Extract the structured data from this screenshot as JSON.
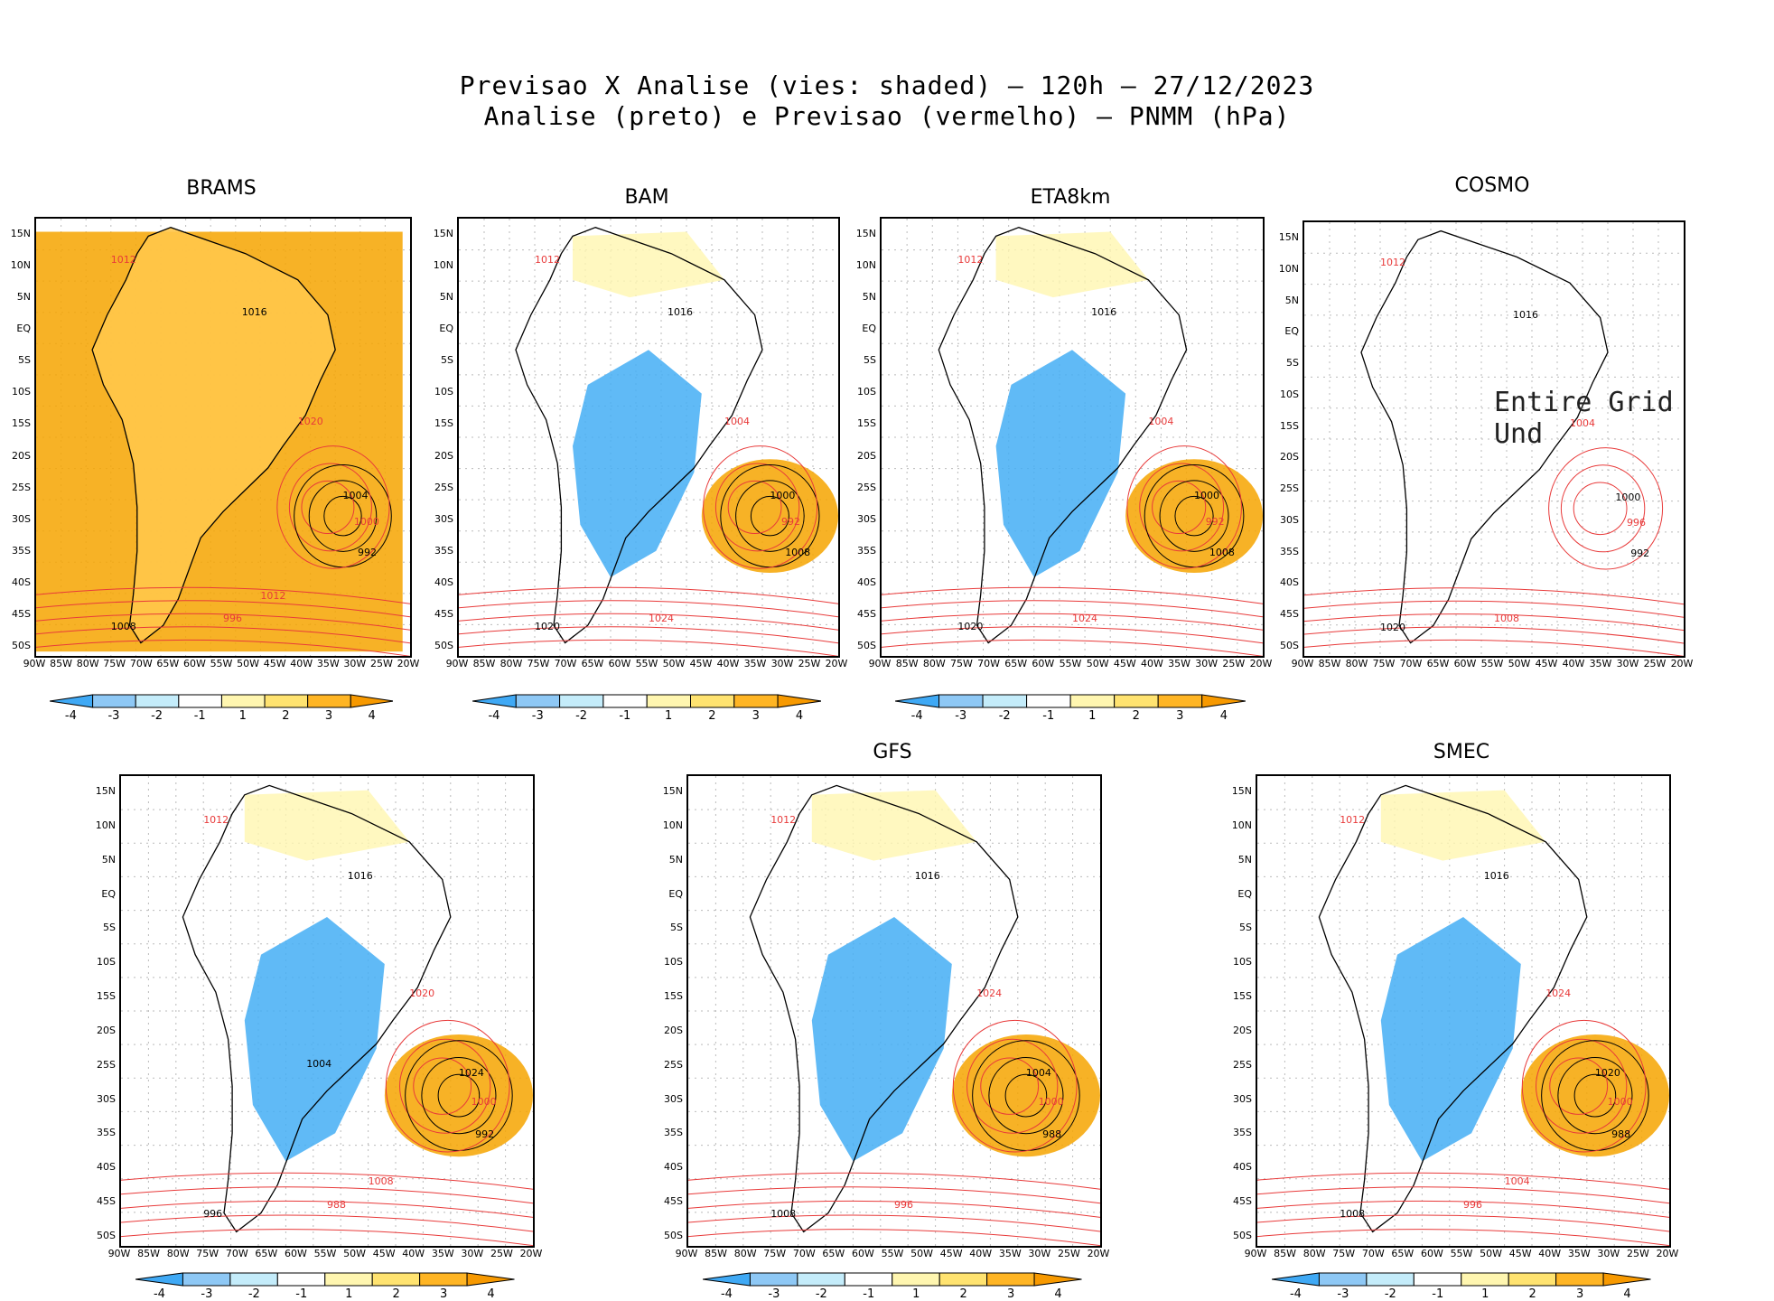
{
  "header": {
    "line1": "Previsao X Analise (vies: shaded) — 120h — 27/12/2023",
    "line2": "Analise (preto) e Previsao (vermelho) — PNMM (hPa)"
  },
  "axes": {
    "lat_labels": [
      "15N",
      "10N",
      "5N",
      "EQ",
      "5S",
      "10S",
      "15S",
      "20S",
      "25S",
      "30S",
      "35S",
      "40S",
      "45S",
      "50S"
    ],
    "lon_labels": [
      "90W",
      "85W",
      "80W",
      "75W",
      "70W",
      "65W",
      "60W",
      "55W",
      "50W",
      "45W",
      "40W",
      "35W",
      "30W",
      "25W",
      "20W"
    ]
  },
  "colorbar": {
    "labels": [
      "-4",
      "-3",
      "-2",
      "-1",
      "1",
      "2",
      "3",
      "4"
    ],
    "colors": [
      "#3fa9f5",
      "#8ec8f5",
      "#c4ecfa",
      "#ffffff",
      "#fff6b0",
      "#ffe370",
      "#ffb524",
      "#f79900"
    ]
  },
  "colors": {
    "analysis_contour": "#000000",
    "forecast_contour": "#e83a3a",
    "positive_bias": "#f6a500",
    "negative_bias": "#44aef5"
  },
  "panels": [
    {
      "id": "brams",
      "title": "BRAMS",
      "labels": [
        "1012",
        "1016",
        "1020",
        "1004",
        "1000",
        "992",
        "996",
        "1008",
        "1012"
      ]
    },
    {
      "id": "bam",
      "title": "BAM",
      "labels": [
        "1012",
        "1016",
        "1004",
        "1000",
        "992",
        "1008",
        "1024",
        "1020"
      ]
    },
    {
      "id": "eta8km",
      "title": "ETA8km",
      "labels": [
        "1012",
        "1016",
        "1004",
        "1000",
        "992",
        "1008",
        "1024",
        "1020"
      ]
    },
    {
      "id": "cosmo",
      "title": "COSMO",
      "overlay": "Entire Grid Und",
      "labels": [
        "1012",
        "1016",
        "1004",
        "1000",
        "996",
        "992",
        "1008",
        "1020"
      ]
    },
    {
      "id": "panel5",
      "title": "",
      "labels": [
        "1012",
        "1016",
        "1020",
        "1024",
        "1000",
        "992",
        "988",
        "996",
        "1008",
        "1004"
      ]
    },
    {
      "id": "gfs",
      "title": "GFS",
      "labels": [
        "1012",
        "1016",
        "1024",
        "1004",
        "1000",
        "988",
        "996",
        "1008"
      ]
    },
    {
      "id": "smec",
      "title": "SMEC",
      "labels": [
        "1012",
        "1016",
        "1024",
        "1020",
        "1000",
        "988",
        "996",
        "1008",
        "1004"
      ]
    }
  ]
}
